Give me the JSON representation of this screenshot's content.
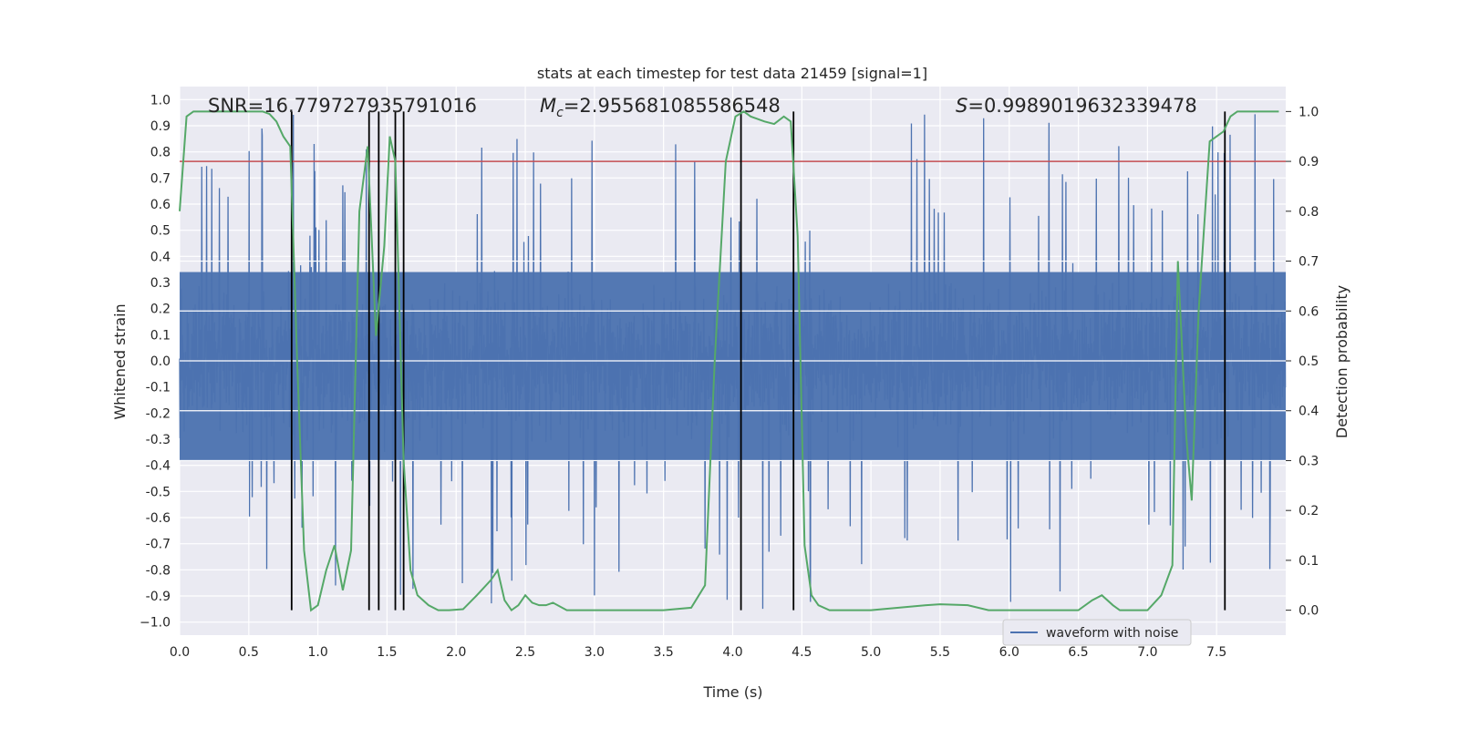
{
  "chart_data": {
    "type": "line",
    "title": "stats at each timestep for test data 21459 [signal=1]",
    "xlabel": "Time (s)",
    "ylabel_left": "Whitened strain",
    "ylabel_right": "Detection probability",
    "xlim": [
      0,
      8
    ],
    "ylim_left": [
      -1.05,
      1.05
    ],
    "ylim_right": [
      -0.05,
      1.05
    ],
    "x_ticks": [
      0.0,
      0.5,
      1.0,
      1.5,
      2.0,
      2.5,
      3.0,
      3.5,
      4.0,
      4.5,
      5.0,
      5.5,
      6.0,
      6.5,
      7.0,
      7.5
    ],
    "x_tick_labels": [
      "0.0",
      "0.5",
      "1.0",
      "1.5",
      "2.0",
      "2.5",
      "3.0",
      "3.5",
      "4.0",
      "4.5",
      "5.0",
      "5.5",
      "6.0",
      "6.5",
      "7.0",
      "7.5"
    ],
    "y_left_ticks": [
      1.0,
      0.9,
      0.8,
      0.7,
      0.6,
      0.5,
      0.4,
      0.3,
      0.2,
      0.1,
      0.0,
      -0.1,
      -0.2,
      -0.3,
      -0.4,
      -0.5,
      -0.6,
      -0.7,
      -0.8,
      -0.9,
      -1.0
    ],
    "y_left_tick_labels": [
      "1.0",
      "0.9",
      "0.8",
      "0.7",
      "0.6",
      "0.5",
      "0.4",
      "0.3",
      "0.2",
      "0.1",
      "0.0",
      "-0.1",
      "-0.2",
      "-0.3",
      "-0.4",
      "-0.5",
      "-0.6",
      "-0.7",
      "-0.8",
      "-0.9",
      "−1.0"
    ],
    "y_right_ticks": [
      1.0,
      0.9,
      0.8,
      0.7,
      0.6,
      0.5,
      0.4,
      0.3,
      0.2,
      0.1,
      0.0
    ],
    "y_right_tick_labels": [
      "1.0",
      "0.9",
      "0.8",
      "0.7",
      "0.6",
      "0.5",
      "0.4",
      "0.3",
      "0.2",
      "0.1",
      "0.0"
    ],
    "annotations": {
      "snr": "SNR=16.779727935791016",
      "mc_symbol": "M",
      "mc_sub": "c",
      "mc_value": "=2.955681085586548",
      "s_symbol": "S",
      "s_value": "=0.9989019632339478"
    },
    "threshold": {
      "value": 0.9,
      "axis": "right",
      "color": "#c44e52"
    },
    "vertical_lines": [
      0.81,
      1.37,
      1.44,
      1.56,
      1.62,
      4.06,
      4.44,
      7.56
    ],
    "legend": {
      "label": "waveform with noise",
      "position": "lower-right"
    },
    "series": [
      {
        "name": "waveform with noise",
        "axis": "left",
        "color": "#4c72b0",
        "kind": "noise",
        "duration": 8.0,
        "samples": 3200,
        "envelope": 0.55,
        "spike_max": 1.0
      },
      {
        "name": "detection probability",
        "axis": "right",
        "color": "#55a868",
        "x": [
          0.0,
          0.05,
          0.1,
          0.2,
          0.3,
          0.4,
          0.5,
          0.6,
          0.65,
          0.7,
          0.75,
          0.8,
          0.85,
          0.9,
          0.95,
          1.0,
          1.06,
          1.12,
          1.18,
          1.24,
          1.3,
          1.36,
          1.42,
          1.48,
          1.52,
          1.56,
          1.62,
          1.67,
          1.72,
          1.8,
          1.87,
          1.95,
          2.05,
          2.15,
          2.25,
          2.3,
          2.35,
          2.4,
          2.45,
          2.5,
          2.55,
          2.6,
          2.65,
          2.7,
          2.8,
          2.9,
          3.0,
          3.5,
          3.7,
          3.8,
          3.87,
          3.95,
          4.02,
          4.08,
          4.13,
          4.18,
          4.23,
          4.3,
          4.37,
          4.42,
          4.47,
          4.52,
          4.57,
          4.62,
          4.7,
          4.8,
          5.0,
          5.4,
          5.5,
          5.7,
          5.85,
          6.0,
          6.5,
          6.6,
          6.67,
          6.75,
          6.8,
          6.9,
          7.0,
          7.1,
          7.18,
          7.22,
          7.28,
          7.32,
          7.37,
          7.45,
          7.5,
          7.55,
          7.6,
          7.65,
          7.7,
          7.75,
          7.8,
          7.85,
          7.9,
          7.95
        ],
        "y": [
          0.8,
          0.99,
          1.0,
          1.0,
          1.0,
          1.0,
          1.0,
          1.0,
          0.995,
          0.98,
          0.95,
          0.93,
          0.5,
          0.12,
          0.0,
          0.01,
          0.08,
          0.13,
          0.04,
          0.12,
          0.8,
          0.93,
          0.55,
          0.73,
          0.95,
          0.9,
          0.3,
          0.08,
          0.03,
          0.01,
          0.0,
          0.0,
          0.002,
          0.03,
          0.06,
          0.08,
          0.02,
          0.0,
          0.01,
          0.03,
          0.015,
          0.01,
          0.01,
          0.015,
          0.0,
          0.0,
          0.0,
          0.0,
          0.005,
          0.05,
          0.5,
          0.9,
          0.99,
          1.0,
          0.99,
          0.985,
          0.98,
          0.975,
          0.99,
          0.98,
          0.75,
          0.13,
          0.03,
          0.01,
          0.0,
          0.0,
          0.0,
          0.01,
          0.012,
          0.01,
          0.0,
          0.0,
          0.0,
          0.02,
          0.03,
          0.01,
          0.0,
          0.0,
          0.0,
          0.03,
          0.09,
          0.7,
          0.35,
          0.22,
          0.6,
          0.94,
          0.95,
          0.96,
          0.99,
          1.0,
          1.0,
          1.0,
          1.0,
          1.0,
          1.0,
          1.0
        ]
      }
    ]
  }
}
